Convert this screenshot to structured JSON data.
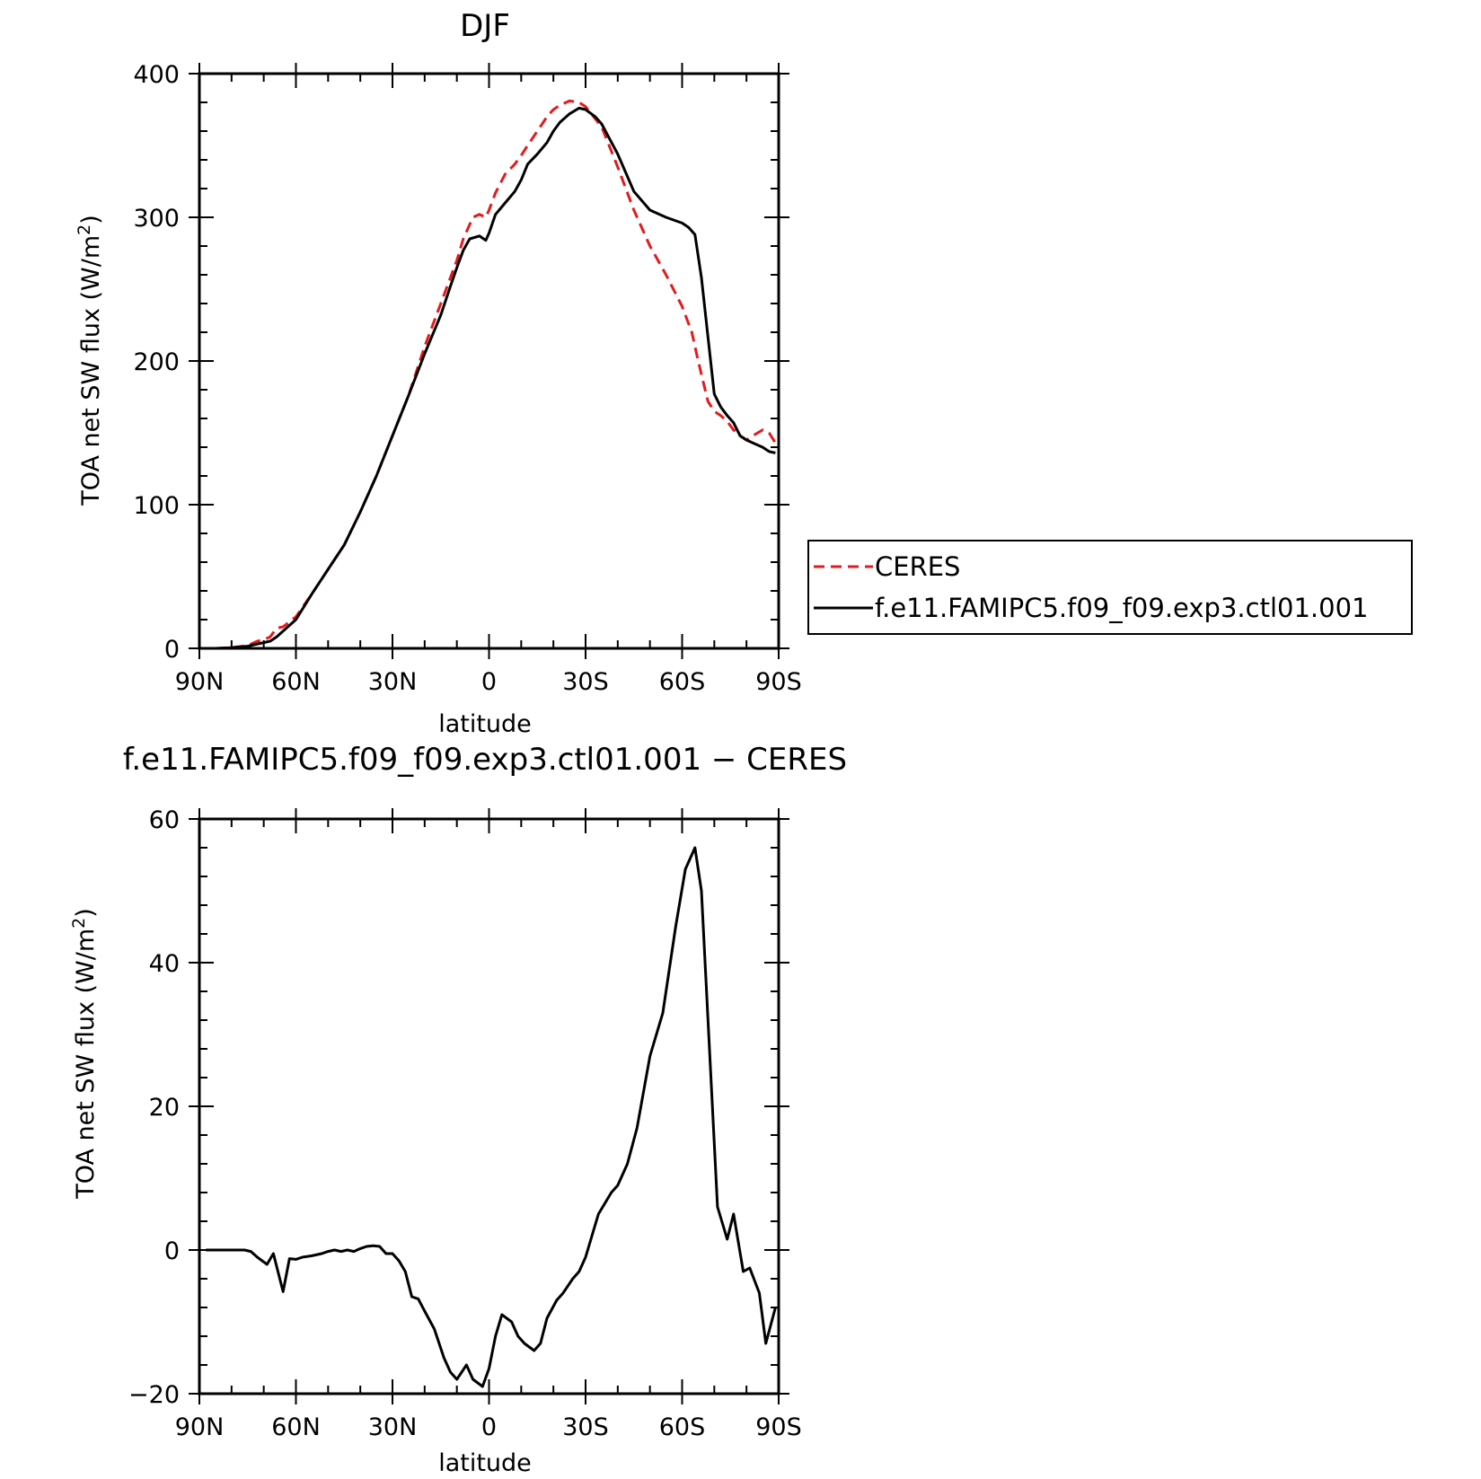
{
  "chart_data": [
    {
      "type": "line",
      "title": "DJF",
      "xlabel": "latitude",
      "ylabel": "TOA net SW flux (W/m²)",
      "ylabel_parts": {
        "main": "TOA net SW flux (W/m",
        "sup": "2",
        "end": ")"
      },
      "xlim": [
        90,
        -90
      ],
      "ylim": [
        0,
        400
      ],
      "x_ticks": [
        90,
        60,
        30,
        0,
        -30,
        -60,
        -90
      ],
      "x_tick_labels": [
        "90N",
        "60N",
        "30N",
        "0",
        "30S",
        "60S",
        "90S"
      ],
      "y_ticks": [
        0,
        100,
        200,
        300,
        400
      ],
      "y_tick_labels": [
        "0",
        "100",
        "200",
        "300",
        "400"
      ],
      "grid": false,
      "legend_position": "right, outside plot",
      "series": [
        {
          "name": "CERES",
          "color": "#e41a1c",
          "dash": "dashed",
          "x": [
            90,
            85,
            80,
            75,
            72,
            70,
            68,
            66,
            64,
            60,
            55,
            50,
            45,
            40,
            35,
            30,
            25,
            20,
            15,
            12,
            10,
            8,
            5,
            3,
            1,
            0,
            -2,
            -5,
            -8,
            -10,
            -12,
            -15,
            -18,
            -20,
            -22,
            -25,
            -28,
            -30,
            -35,
            -40,
            -45,
            -50,
            -55,
            -60,
            -63,
            -65,
            -68,
            -70,
            -72,
            -74,
            -76,
            -78,
            -80,
            -82,
            -85,
            -87,
            -89
          ],
          "y": [
            0,
            0,
            0.5,
            2,
            5,
            6,
            8,
            14,
            15,
            22,
            38,
            55,
            72,
            95,
            120,
            148,
            176,
            210,
            240,
            258,
            270,
            285,
            300,
            302,
            300,
            305,
            317,
            330,
            337,
            343,
            350,
            360,
            370,
            375,
            378,
            381,
            380,
            377,
            363,
            335,
            305,
            280,
            260,
            238,
            220,
            200,
            172,
            165,
            162,
            158,
            152,
            148,
            145,
            148,
            152,
            150,
            143
          ]
        },
        {
          "name": "f.e11.FAMIPC5.f09_f09.exp3.ctl01.001",
          "color": "#000000",
          "dash": "solid",
          "x": [
            90,
            85,
            80,
            75,
            72,
            70,
            68,
            66,
            64,
            60,
            55,
            50,
            45,
            40,
            35,
            30,
            25,
            20,
            15,
            12,
            10,
            8,
            6,
            3,
            1,
            0,
            -2,
            -5,
            -8,
            -10,
            -12,
            -15,
            -18,
            -20,
            -22,
            -25,
            -28,
            -30,
            -33,
            -35,
            -40,
            -45,
            -50,
            -55,
            -60,
            -62,
            -64,
            -66,
            -70,
            -72,
            -74,
            -76,
            -78,
            -80,
            -82,
            -85,
            -87,
            -89
          ],
          "y": [
            0,
            0,
            0.5,
            1.5,
            3,
            4,
            5,
            8,
            12,
            20,
            38,
            55,
            72,
            95,
            120,
            148,
            176,
            205,
            232,
            252,
            265,
            277,
            285,
            287,
            284,
            289,
            302,
            310,
            318,
            326,
            337,
            344,
            352,
            360,
            366,
            372,
            376,
            375,
            370,
            365,
            344,
            318,
            305,
            300,
            296,
            293,
            288,
            258,
            177,
            168,
            162,
            157,
            148,
            145,
            143,
            140,
            137,
            136
          ]
        }
      ],
      "legend": {
        "entries": [
          "CERES",
          "f.e11.FAMIPC5.f09_f09.exp3.ctl01.001"
        ]
      }
    },
    {
      "type": "line",
      "title": "f.e11.FAMIPC5.f09_f09.exp3.ctl01.001 − CERES",
      "xlabel": "latitude",
      "ylabel": "TOA net SW flux (W/m²)",
      "ylabel_parts": {
        "main": "TOA net SW flux (W/m",
        "sup": "2",
        "end": ")"
      },
      "xlim": [
        90,
        -90
      ],
      "ylim": [
        -20,
        60
      ],
      "x_ticks": [
        90,
        60,
        30,
        0,
        -30,
        -60,
        -90
      ],
      "x_tick_labels": [
        "90N",
        "60N",
        "30N",
        "0",
        "30S",
        "60S",
        "90S"
      ],
      "y_ticks": [
        -20,
        0,
        20,
        40,
        60
      ],
      "y_tick_labels": [
        "−20",
        "0",
        "20",
        "40",
        "60"
      ],
      "grid": false,
      "series": [
        {
          "color": "#000000",
          "dash": "solid",
          "x": [
            88,
            85,
            80,
            76,
            74,
            72,
            69,
            67,
            64,
            62,
            60,
            58,
            55,
            52,
            50,
            48,
            46,
            44,
            42,
            40,
            38,
            36,
            34,
            32,
            30,
            28,
            26,
            24,
            22,
            20,
            17,
            14,
            12,
            10,
            7,
            5,
            2,
            0,
            -2,
            -4,
            -7,
            -9,
            -11,
            -14,
            -16,
            -18,
            -21,
            -23,
            -26,
            -28,
            -30,
            -34,
            -38,
            -40,
            -43,
            -46,
            -50,
            -54,
            -58,
            -61,
            -64,
            -66,
            -71,
            -74,
            -76,
            -79,
            -81,
            -84,
            -86,
            -89
          ],
          "y": [
            0,
            0,
            0,
            0,
            -0.2,
            -1,
            -2,
            -0.5,
            -5.8,
            -1.2,
            -1.3,
            -1,
            -0.8,
            -0.5,
            -0.2,
            0,
            -0.2,
            0,
            -0.2,
            0.2,
            0.5,
            0.6,
            0.5,
            -0.5,
            -0.5,
            -1.5,
            -3,
            -6.5,
            -6.8,
            -8.5,
            -11,
            -15,
            -17,
            -18,
            -16,
            -18,
            -19,
            -16.5,
            -12,
            -9,
            -10,
            -12,
            -13,
            -14,
            -13,
            -9.5,
            -7,
            -6,
            -4,
            -3,
            -1,
            5,
            8,
            9,
            12,
            17,
            27,
            33,
            45,
            53,
            56,
            50,
            6,
            1.5,
            5,
            -3,
            -2.5,
            -6,
            -13,
            -8
          ]
        }
      ]
    }
  ]
}
